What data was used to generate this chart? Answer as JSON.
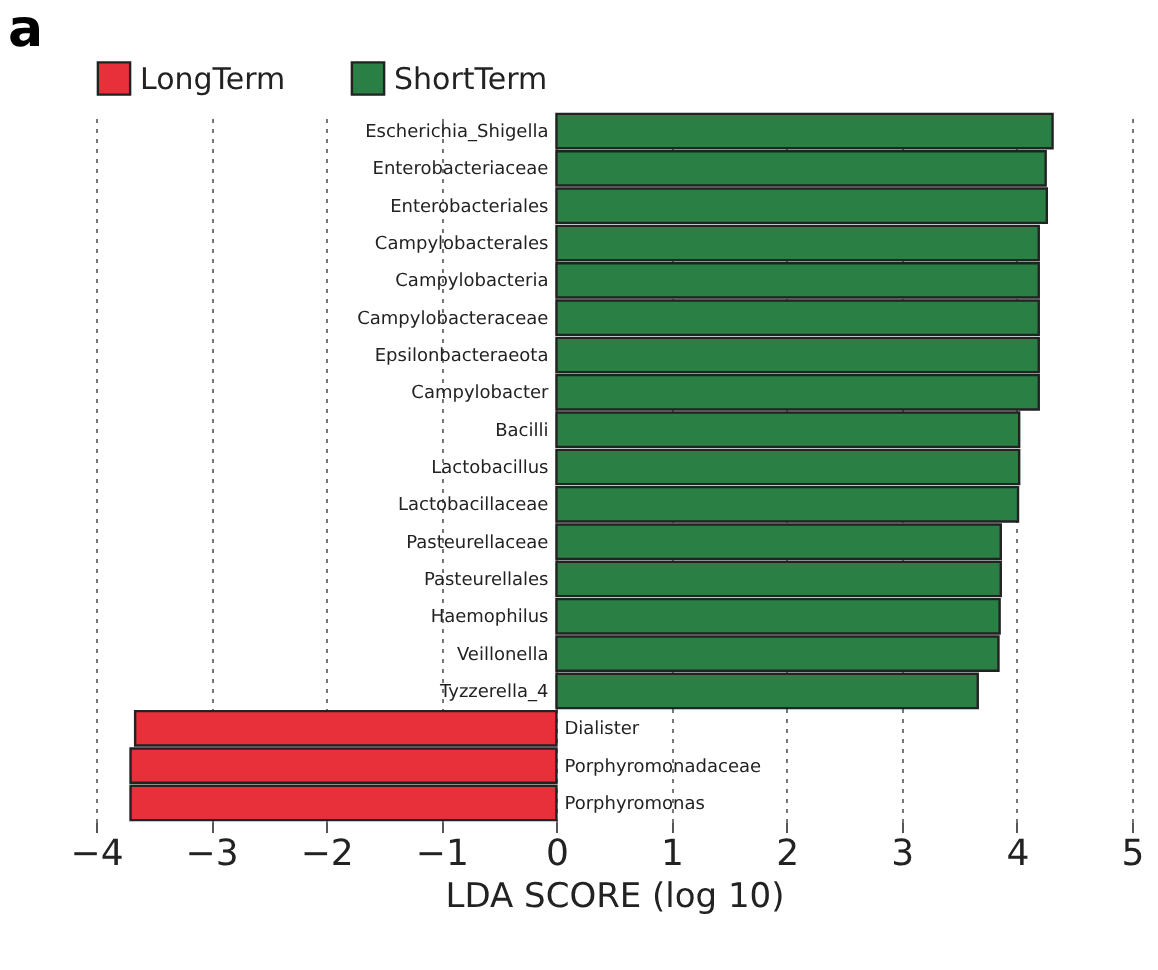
{
  "chart_data": {
    "type": "bar",
    "orientation": "horizontal",
    "title": "a",
    "xlabel": "LDA SCORE (log 10)",
    "categories": [
      "Escherichia_Shigella",
      "Enterobacteriaceae",
      "Enterobacteriales",
      "Campylobacterales",
      "Campylobacteria",
      "Campylobacteraceae",
      "Epsilonbacteraeota",
      "Campylobacter",
      "Bacilli",
      "Lactobacillus",
      "Lactobacillaceae",
      "Pasteurellaceae",
      "Pasteurellales",
      "Haemophilus",
      "Veillonella",
      "Tyzzerella_4",
      "Dialister",
      "Porphyromonadaceae",
      "Porphyromonas"
    ],
    "series": [
      {
        "name": "LongTerm",
        "color": "#e8303a",
        "values": [
          null,
          null,
          null,
          null,
          null,
          null,
          null,
          null,
          null,
          null,
          null,
          null,
          null,
          null,
          null,
          null,
          -3.66,
          -3.7,
          -3.7
        ]
      },
      {
        "name": "ShortTerm",
        "color": "#2a7f45",
        "values": [
          4.31,
          4.25,
          4.26,
          4.19,
          4.19,
          4.19,
          4.19,
          4.19,
          4.02,
          4.02,
          4.01,
          3.86,
          3.86,
          3.85,
          3.84,
          3.66,
          null,
          null,
          null
        ]
      }
    ],
    "xlim": [
      -4,
      5
    ],
    "xticks": [
      -4,
      -3,
      -2,
      -1,
      0,
      1,
      2,
      3,
      4,
      5
    ],
    "grid": "x",
    "legend": "top left"
  }
}
